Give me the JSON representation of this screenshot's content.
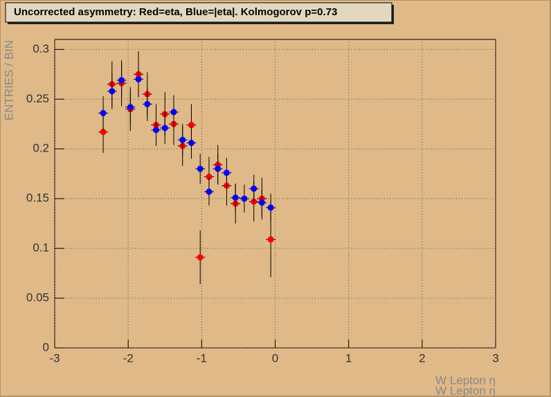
{
  "chart_data": {
    "type": "scatter",
    "title": "Uncorrected asymmetry: Red=eta, Blue=|eta|. Kolmogorov p=0.73",
    "x_label": "W Lepton η",
    "y_label": "ENTRIES / BIN",
    "xlim": [
      -3,
      3
    ],
    "ylim": [
      0,
      0.31
    ],
    "xticks": [
      -3,
      -2,
      -1,
      0,
      1,
      2,
      3
    ],
    "yticks": [
      0,
      0.05,
      0.1,
      0.15,
      0.2,
      0.25,
      0.3
    ],
    "grid": true,
    "series": [
      {
        "color": "#ff0000",
        "x": [
          -2.34,
          -2.22,
          -2.09,
          -1.97,
          -1.86,
          -1.74,
          -1.62,
          -1.5,
          -1.38,
          -1.26,
          -1.14,
          -1.02,
          -0.9,
          -0.78,
          -0.66,
          -0.54,
          -0.29,
          -0.18,
          -0.06
        ],
        "values": [
          0.217,
          0.265,
          0.266,
          0.24,
          0.275,
          0.255,
          0.224,
          0.235,
          0.225,
          0.203,
          0.224,
          0.091,
          0.172,
          0.184,
          0.163,
          0.145,
          0.147,
          0.15,
          0.109
        ],
        "errors": [
          0.021,
          0.023,
          0.023,
          0.022,
          0.023,
          0.022,
          0.021,
          0.022,
          0.021,
          0.02,
          0.021,
          0.027,
          0.02,
          0.02,
          0.02,
          0.02,
          0.02,
          0.021,
          0.038
        ]
      },
      {
        "color": "#0000ff",
        "x": [
          -2.34,
          -2.22,
          -2.09,
          -1.97,
          -1.86,
          -1.74,
          -1.62,
          -1.5,
          -1.38,
          -1.26,
          -1.14,
          -1.02,
          -0.9,
          -0.78,
          -0.66,
          -0.54,
          -0.42,
          -0.29,
          -0.18,
          -0.06
        ],
        "values": [
          0.236,
          0.258,
          0.269,
          0.242,
          0.27,
          0.245,
          0.219,
          0.221,
          0.237,
          0.209,
          0.206,
          0.18,
          0.157,
          0.18,
          0.176,
          0.151,
          0.15,
          0.16,
          0.146,
          0.141
        ],
        "errors": [
          0.017,
          0.018,
          0.018,
          0.017,
          0.018,
          0.017,
          0.016,
          0.016,
          0.017,
          0.016,
          0.016,
          0.015,
          0.014,
          0.015,
          0.015,
          0.014,
          0.014,
          0.014,
          0.014,
          0.014
        ]
      }
    ]
  }
}
